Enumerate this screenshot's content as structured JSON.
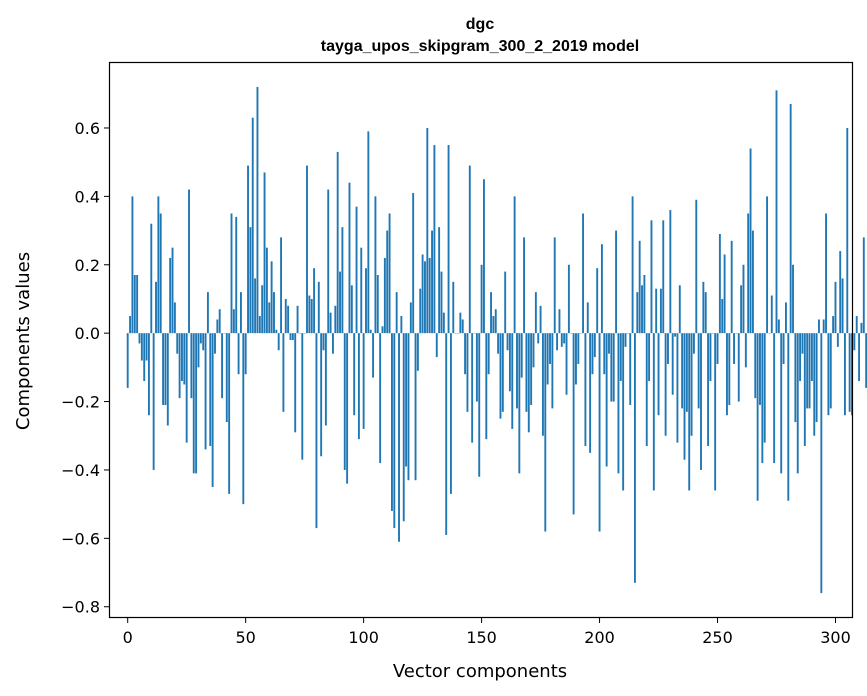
{
  "chart_data": {
    "type": "bar",
    "title": "dgc",
    "subtitle": "tayga_upos_skipgram_300_2_2019 model",
    "xlabel": "Vector components",
    "ylabel": "Components values",
    "xlim": [
      -7.5,
      307
    ],
    "ylim": [
      -0.83,
      0.79
    ],
    "xticks": [
      0,
      50,
      100,
      150,
      200,
      250,
      300
    ],
    "yticks": [
      -0.8,
      -0.6,
      -0.4,
      -0.2,
      0.0,
      0.2,
      0.4,
      0.6
    ],
    "ytick_labels": [
      "−0.8",
      "−0.6",
      "−0.4",
      "−0.2",
      "0.0",
      "0.2",
      "0.4",
      "0.6"
    ],
    "grid": false,
    "bar_color": "#1f77b4",
    "series": [
      {
        "values": [
          -0.16,
          0.05,
          0.4,
          0.17,
          0.17,
          -0.03,
          -0.08,
          -0.14,
          -0.08,
          -0.24,
          0.32,
          -0.4,
          0.15,
          0.4,
          0.35,
          -0.21,
          -0.21,
          -0.27,
          0.22,
          0.25,
          0.09,
          -0.06,
          -0.19,
          -0.14,
          -0.15,
          -0.32,
          0.42,
          -0.19,
          -0.41,
          -0.41,
          -0.1,
          -0.03,
          -0.05,
          -0.34,
          0.12,
          -0.33,
          -0.45,
          -0.06,
          0.04,
          0.07,
          -0.19,
          0.0,
          -0.26,
          -0.47,
          0.35,
          0.07,
          0.34,
          -0.12,
          0.12,
          -0.5,
          -0.12,
          0.49,
          0.31,
          0.63,
          0.16,
          0.72,
          0.05,
          0.14,
          0.47,
          0.25,
          0.09,
          0.21,
          0.12,
          0.01,
          -0.05,
          0.28,
          -0.23,
          0.1,
          0.08,
          -0.02,
          -0.02,
          -0.29,
          0.08,
          0.0,
          -0.37,
          0.0,
          0.49,
          0.11,
          0.1,
          0.19,
          -0.57,
          0.15,
          -0.36,
          -0.05,
          -0.27,
          0.42,
          0.06,
          -0.06,
          0.08,
          0.53,
          0.18,
          0.31,
          -0.4,
          -0.44,
          0.44,
          0.14,
          -0.24,
          0.37,
          -0.31,
          0.25,
          -0.28,
          0.19,
          0.59,
          0.01,
          -0.13,
          0.4,
          0.17,
          -0.38,
          0.02,
          0.22,
          0.3,
          0.35,
          -0.52,
          -0.57,
          0.12,
          -0.61,
          0.05,
          -0.55,
          -0.39,
          -0.43,
          0.09,
          0.41,
          -0.43,
          -0.11,
          0.13,
          0.23,
          0.21,
          0.6,
          0.22,
          0.3,
          0.55,
          -0.07,
          0.31,
          0.18,
          0.06,
          -0.59,
          0.55,
          -0.47,
          0.15,
          0.0,
          0.0,
          0.06,
          0.04,
          -0.12,
          -0.23,
          0.49,
          -0.32,
          0.0,
          -0.2,
          -0.42,
          0.2,
          0.45,
          -0.31,
          -0.12,
          0.12,
          0.05,
          0.07,
          -0.06,
          -0.25,
          -0.23,
          0.18,
          -0.05,
          -0.17,
          -0.28,
          0.4,
          -0.22,
          -0.41,
          -0.13,
          0.28,
          -0.23,
          -0.29,
          -0.21,
          -0.1,
          0.12,
          -0.03,
          0.08,
          -0.3,
          -0.58,
          -0.15,
          -0.09,
          -0.22,
          0.28,
          -0.05,
          0.07,
          -0.04,
          -0.03,
          -0.18,
          0.2,
          0.0,
          -0.53,
          -0.15,
          -0.09,
          0.0,
          0.35,
          -0.33,
          0.09,
          -0.35,
          -0.12,
          -0.07,
          0.19,
          -0.58,
          0.26,
          -0.12,
          -0.39,
          -0.06,
          -0.2,
          -0.2,
          0.3,
          -0.41,
          -0.14,
          -0.46,
          -0.04,
          0.0,
          -0.21,
          0.4,
          -0.73,
          0.12,
          0.27,
          0.14,
          0.17,
          -0.33,
          -0.14,
          0.33,
          -0.46,
          0.13,
          -0.24,
          0.13,
          0.33,
          -0.3,
          -0.09,
          0.36,
          -0.18,
          -0.01,
          -0.32,
          0.14,
          -0.22,
          -0.37,
          -0.23,
          -0.46,
          -0.3,
          -0.06,
          0.39,
          -0.22,
          -0.4,
          0.15,
          0.12,
          -0.33,
          -0.14,
          0.0,
          -0.46,
          -0.09,
          0.29,
          0.1,
          0.23,
          -0.24,
          -0.21,
          0.27,
          -0.09,
          0.0,
          -0.2,
          0.14,
          0.2,
          -0.1,
          0.35,
          0.54,
          0.3,
          -0.19,
          -0.49,
          -0.21,
          -0.38,
          -0.32,
          0.4,
          0.0,
          0.11,
          -0.38,
          0.71,
          0.04,
          -0.41,
          -0.09,
          0.09,
          -0.49,
          0.67,
          0.2,
          -0.26,
          -0.41,
          -0.14,
          -0.06,
          -0.33,
          -0.22,
          -0.22,
          -0.14,
          -0.3,
          -0.26,
          0.04,
          -0.76,
          0.04,
          0.35,
          -0.24,
          -0.22,
          0.05,
          0.15,
          -0.04,
          0.24,
          0.16,
          -0.24,
          0.6,
          -0.23,
          -0.24,
          -0.05,
          0.05,
          -0.14,
          0.03,
          0.28,
          -0.16
        ]
      }
    ]
  }
}
